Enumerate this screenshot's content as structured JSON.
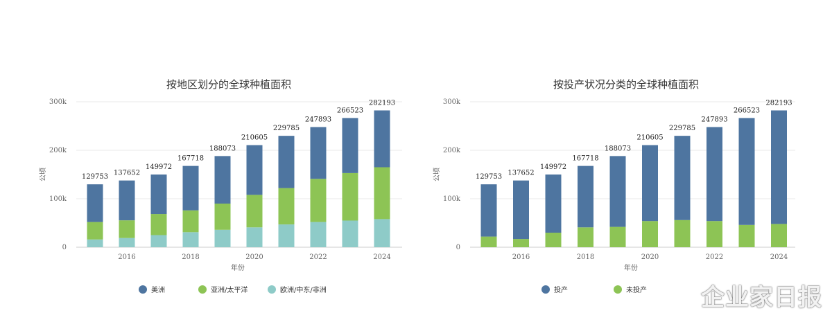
{
  "watermark": "企业家日报",
  "chart_data": [
    {
      "type": "bar",
      "stacked": true,
      "title": "按地区划分的全球种植面积",
      "xlabel": "年份",
      "ylabel": "公顷",
      "ylim": [
        0,
        300000
      ],
      "yticks": [
        0,
        100000,
        200000,
        300000
      ],
      "ytick_labels": [
        "0",
        "100k",
        "200k",
        "300k"
      ],
      "categories": [
        "2015",
        "2016",
        "2017",
        "2018",
        "2019",
        "2020",
        "2021",
        "2022",
        "2023",
        "2024"
      ],
      "xtick_labels": [
        "2016",
        "2018",
        "2020",
        "2022",
        "2024"
      ],
      "totals": [
        129753,
        137652,
        149972,
        167718,
        188073,
        210605,
        229785,
        247893,
        266523,
        282193
      ],
      "series": [
        {
          "name": "欧洲/中东/非洲",
          "color": "#8ecbc8",
          "values": [
            16000,
            19000,
            25000,
            31000,
            36000,
            41000,
            47000,
            52000,
            55000,
            58000
          ]
        },
        {
          "name": "亚洲/太平洋",
          "color": "#8dc455",
          "values": [
            36000,
            36500,
            43500,
            45000,
            54000,
            67000,
            75000,
            89000,
            98000,
            107000
          ]
        },
        {
          "name": "美洲",
          "color": "#4e75a0",
          "values": [
            77753,
            82152,
            81472,
            91718,
            98073,
            102605,
            107785,
            106893,
            113523,
            117193
          ]
        }
      ],
      "grid": true,
      "legend_position": "bottom",
      "legend_order": [
        "美洲",
        "亚洲/太平洋",
        "欧洲/中东/非洲"
      ]
    },
    {
      "type": "bar",
      "stacked": true,
      "title": "按投产状况分类的全球种植面积",
      "xlabel": "年份",
      "ylabel": "公顷",
      "ylim": [
        0,
        300000
      ],
      "yticks": [
        0,
        100000,
        200000,
        300000
      ],
      "ytick_labels": [
        "0",
        "100k",
        "200k",
        "300k"
      ],
      "categories": [
        "2015",
        "2016",
        "2017",
        "2018",
        "2019",
        "2020",
        "2021",
        "2022",
        "2023",
        "2024"
      ],
      "xtick_labels": [
        "2016",
        "2018",
        "2020",
        "2022",
        "2024"
      ],
      "totals": [
        129753,
        137652,
        149972,
        167718,
        188073,
        210605,
        229785,
        247893,
        266523,
        282193
      ],
      "series": [
        {
          "name": "未投产",
          "color": "#8dc455",
          "values": [
            22000,
            17000,
            30000,
            41000,
            42000,
            54000,
            56000,
            54000,
            46000,
            48000
          ]
        },
        {
          "name": "投产",
          "color": "#4e75a0",
          "values": [
            107753,
            120652,
            119972,
            126718,
            146073,
            156605,
            173785,
            193893,
            220523,
            234193
          ]
        }
      ],
      "grid": true,
      "legend_position": "bottom",
      "legend_order": [
        "投产",
        "未投产"
      ]
    }
  ]
}
